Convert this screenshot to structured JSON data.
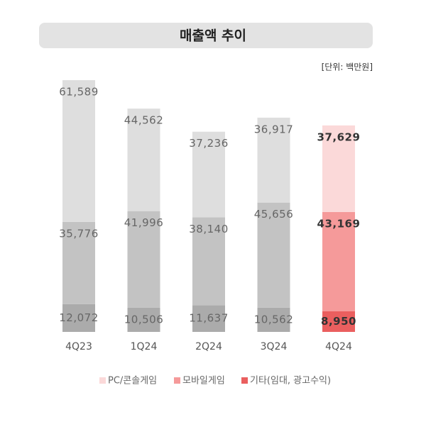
{
  "chart_data": {
    "type": "stacked_bar",
    "title": "매출액 추이",
    "unit_label": "[단위: 백만원]",
    "categories": [
      "4Q23",
      "1Q24",
      "2Q24",
      "3Q24",
      "4Q24"
    ],
    "highlight_index": 4,
    "series": [
      {
        "name": "PC/콘솔게임",
        "color": "#fbd9d9",
        "muted_color": "#dedede",
        "values": [
          61589,
          44562,
          37236,
          36917,
          37629
        ],
        "value_labels": [
          "61,589",
          "44,562",
          "37,236",
          "36,917",
          "37,629"
        ]
      },
      {
        "name": "모바일게임",
        "color": "#f59a9a",
        "muted_color": "#c3c3c3",
        "values": [
          35776,
          41996,
          38140,
          45656,
          43169
        ],
        "value_labels": [
          "35,776",
          "41,996",
          "38,140",
          "45,656",
          "43,169"
        ]
      },
      {
        "name": "기타(임대, 광고수익)",
        "color": "#ea5f5f",
        "muted_color": "#ababab",
        "values": [
          12072,
          10506,
          11637,
          10562,
          8950
        ],
        "value_labels": [
          "12,072",
          "10,506",
          "11,637",
          "10,562",
          "8,950"
        ]
      }
    ]
  }
}
